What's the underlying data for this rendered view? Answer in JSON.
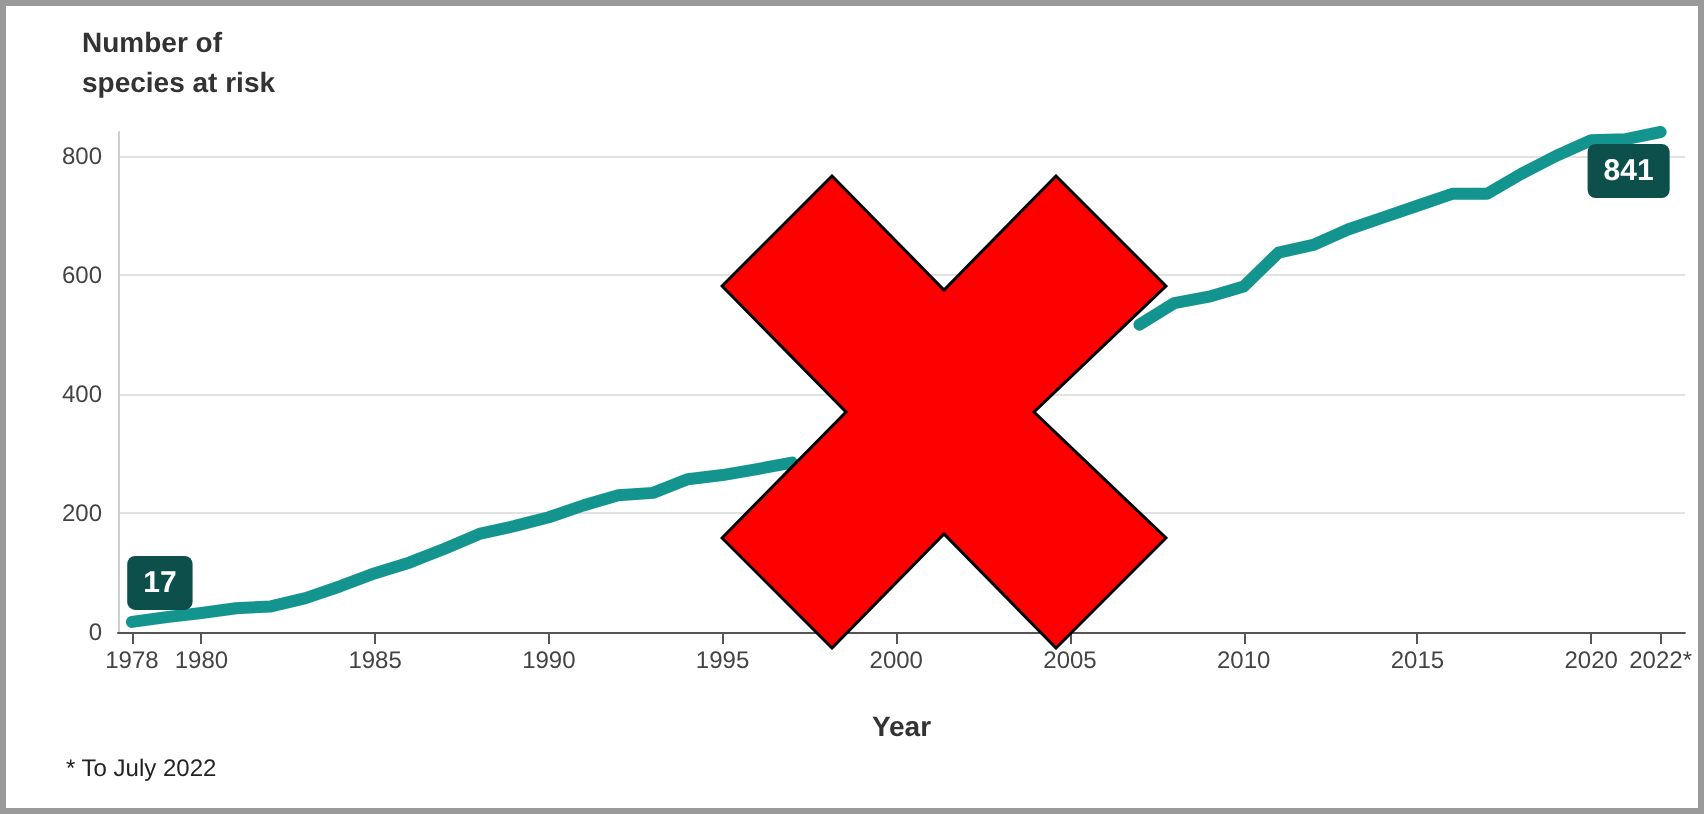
{
  "chart_data": {
    "type": "line",
    "ylabel": "Number of species at risk",
    "xlabel": "Year",
    "x": [
      1978,
      1979,
      1980,
      1981,
      1982,
      1983,
      1984,
      1985,
      1986,
      1987,
      1988,
      1989,
      1990,
      1991,
      1992,
      1993,
      1994,
      1995,
      1996,
      1997,
      1998,
      1999,
      2000,
      2001,
      2002,
      2003,
      2004,
      2005,
      2006,
      2007,
      2008,
      2009,
      2010,
      2011,
      2012,
      2013,
      2014,
      2015,
      2016,
      2017,
      2018,
      2019,
      2020,
      2021,
      2022
    ],
    "series": [
      {
        "color": "#13948e",
        "values": [
          17,
          25,
          32,
          40,
          43,
          57,
          77,
          99,
          117,
          140,
          165,
          178,
          193,
          213,
          230,
          234,
          257,
          264,
          274,
          285,
          null,
          null,
          null,
          null,
          null,
          null,
          null,
          null,
          null,
          517,
          553,
          564,
          581,
          638,
          651,
          677,
          697,
          717,
          737,
          737,
          771,
          801,
          827,
          829,
          841
        ]
      }
    ],
    "xlim": [
      1977.6,
      2022.7
    ],
    "xticks": [
      1978,
      1980,
      1985,
      1990,
      1995,
      2000,
      2005,
      2010,
      2015,
      2020,
      {
        "value": 2022,
        "label": "2022*"
      }
    ],
    "yticks": [
      0,
      200,
      400,
      600,
      800
    ],
    "ylim": [
      0,
      841
    ],
    "grid": "y",
    "marker": "none",
    "line_style": "solid",
    "annotations": [
      {
        "text": "17",
        "x": 1978,
        "y": 17
      },
      {
        "text": "841",
        "x": 2022,
        "y": 841
      },
      "* To July 2022"
    ]
  }
}
